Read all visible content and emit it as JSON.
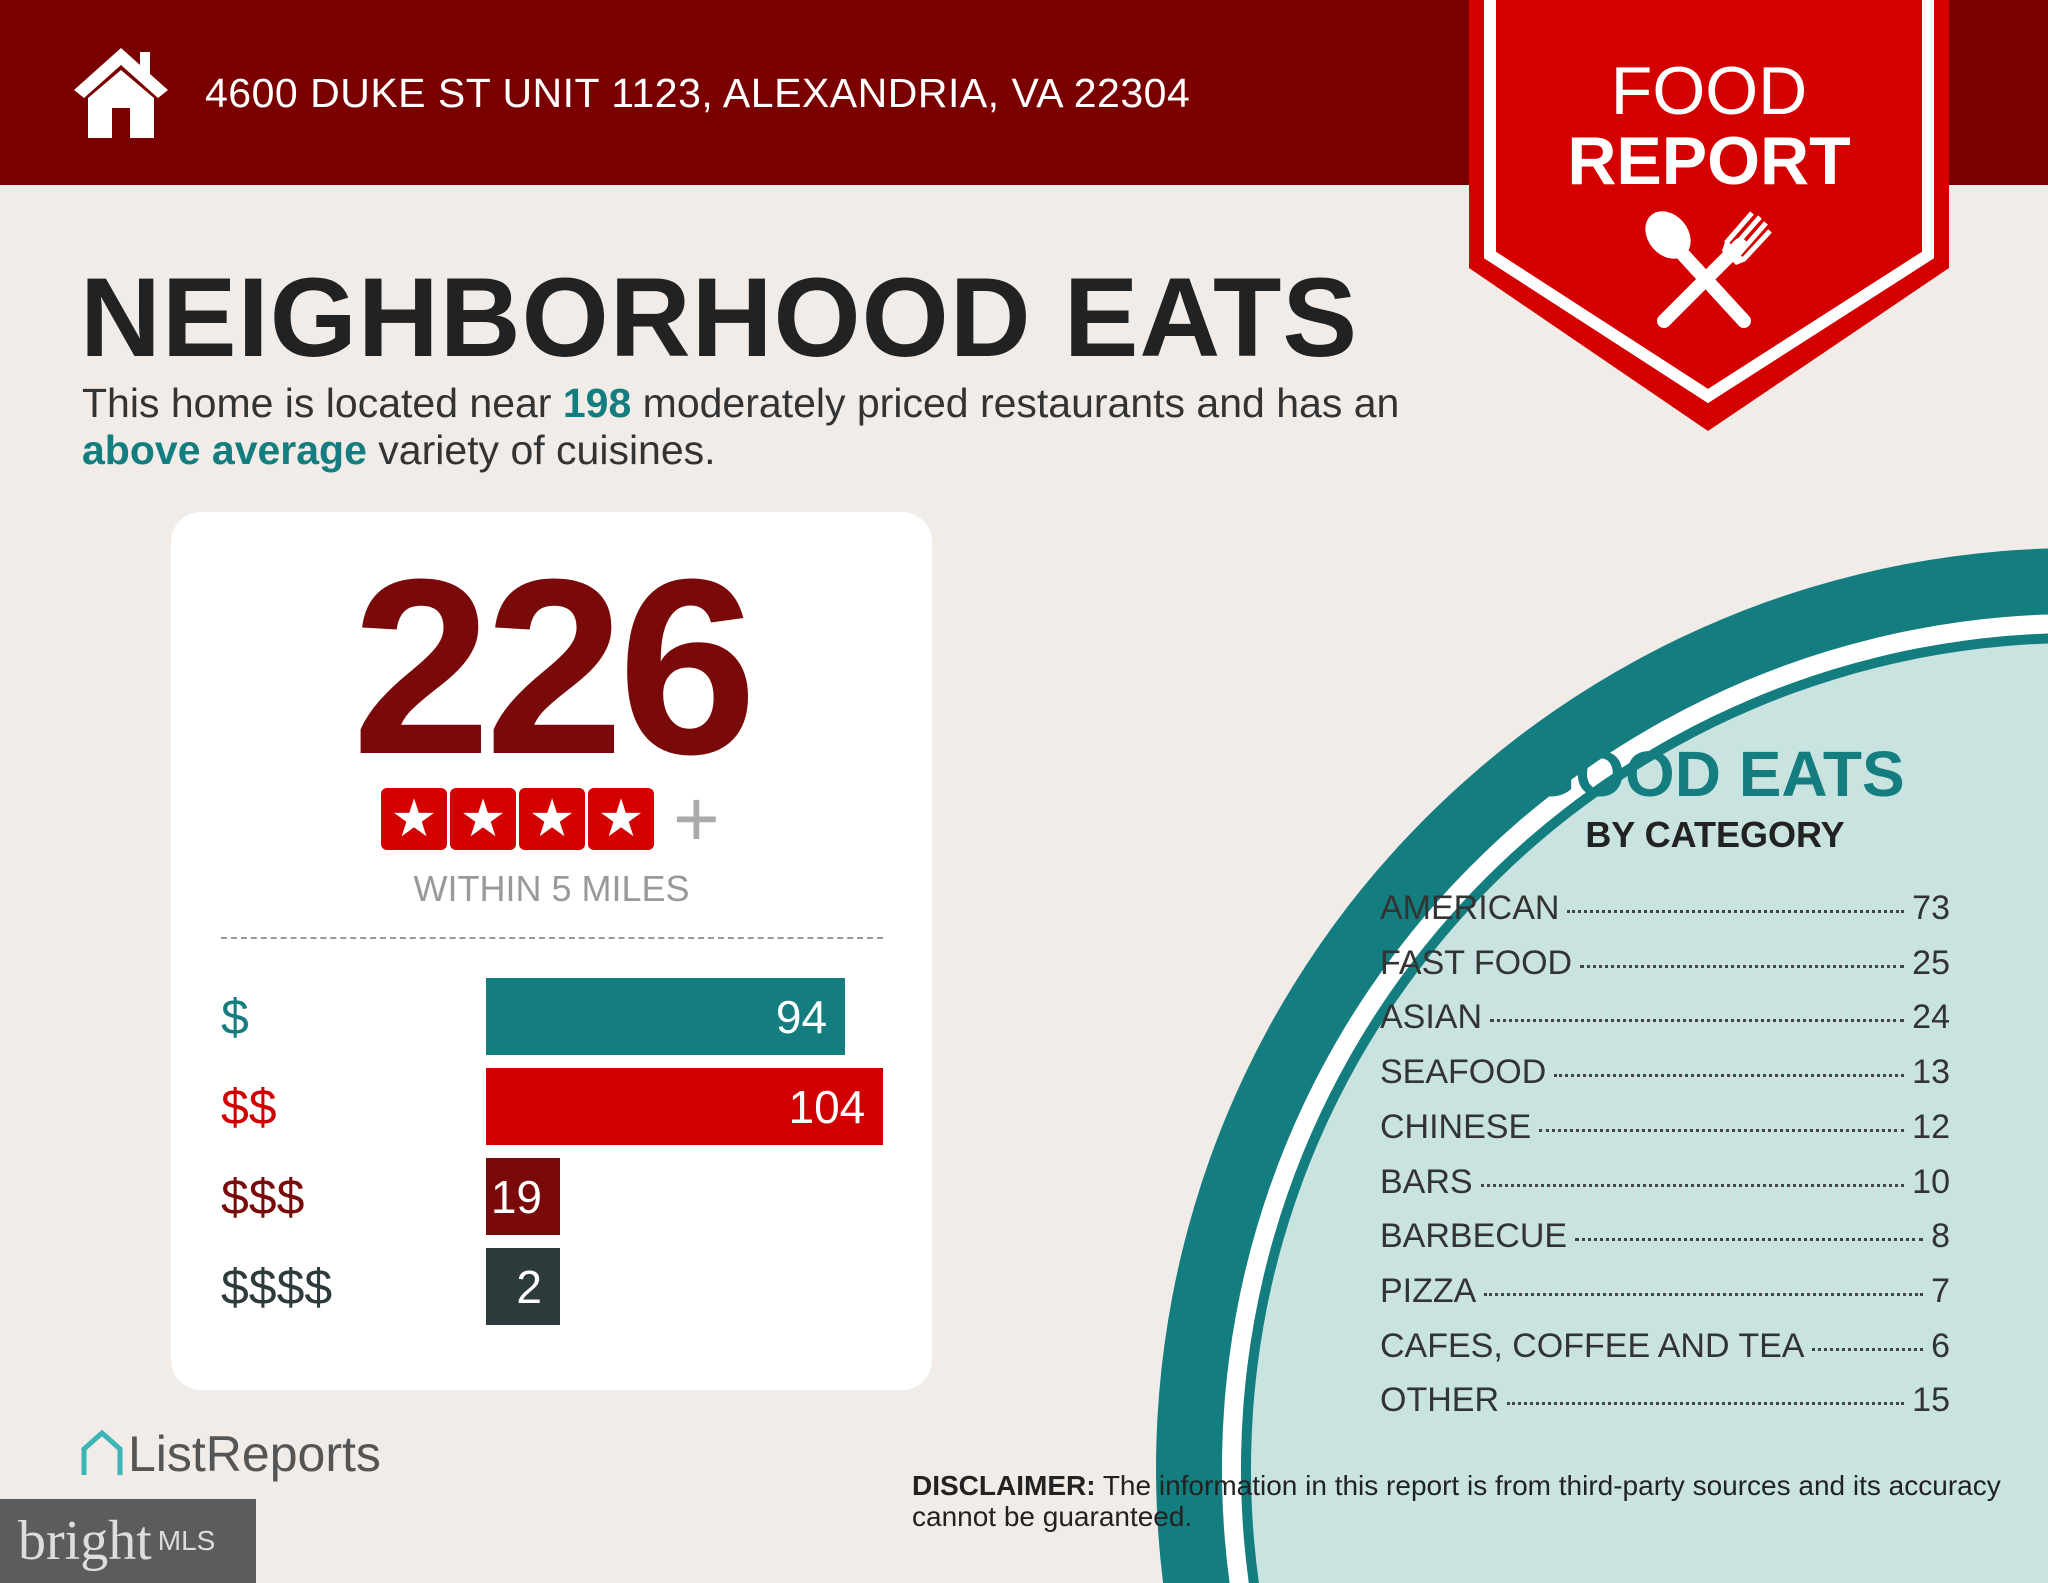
{
  "header": {
    "address": "4600 DUKE ST UNIT 1123, ALEXANDRIA, VA 22304",
    "icon": "house-icon"
  },
  "banner": {
    "line1": "FOOD",
    "line2": "REPORT",
    "icon": "spoon-fork-icon"
  },
  "title": "NEIGHBORHOOD EATS",
  "subtitle": {
    "p1": "This home is located near ",
    "count": "198",
    "p2": " moderately priced restaurants and has an ",
    "variety": "above average",
    "p3": " variety of cuisines."
  },
  "summary": {
    "total": "226",
    "stars": 4,
    "star_glyph": "★",
    "plus": "+",
    "within": "WITHIN 5 MILES"
  },
  "price_tiers": [
    {
      "label": "$",
      "value": 94,
      "color": "#137d80",
      "label_color": "#137d80"
    },
    {
      "label": "$$",
      "value": 104,
      "color": "#d10000",
      "label_color": "#d10000"
    },
    {
      "label": "$$$",
      "value": 19,
      "color": "#7a0a0a",
      "label_color": "#7a0a0a"
    },
    {
      "label": "$$$$",
      "value": 2,
      "color": "#2e3b3d",
      "label_color": "#2e3b3d"
    }
  ],
  "categories": {
    "title": "GOOD EATS",
    "subtitle": "BY CATEGORY",
    "items": [
      {
        "name": "AMERICAN",
        "count": "73"
      },
      {
        "name": "FAST FOOD",
        "count": "25"
      },
      {
        "name": "ASIAN",
        "count": "24"
      },
      {
        "name": "SEAFOOD",
        "count": "13"
      },
      {
        "name": "CHINESE",
        "count": "12"
      },
      {
        "name": "BARS",
        "count": "10"
      },
      {
        "name": "BARBECUE",
        "count": "8"
      },
      {
        "name": "PIZZA",
        "count": "7"
      },
      {
        "name": "CAFES, COFFEE AND TEA",
        "count": "6"
      },
      {
        "name": "OTHER",
        "count": "15"
      }
    ]
  },
  "disclaimer": {
    "label": "DISCLAIMER:",
    "text": " The information in this report is from third-party sources and its accuracy cannot be guaranteed."
  },
  "footer": {
    "listreports": "ListReports",
    "bright": "bright",
    "mls": "MLS"
  },
  "colors": {
    "header": "#7a0000",
    "banner": "#d40000",
    "teal": "#137d80",
    "circle_fill": "#c8e3e0"
  }
}
